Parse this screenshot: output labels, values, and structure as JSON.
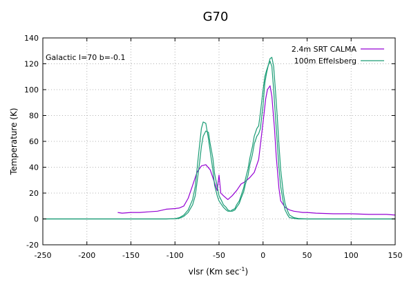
{
  "chart_data": {
    "type": "line",
    "title": "G70",
    "xlabel_main": "vlsr (Km sec",
    "xlabel_sup": "-1",
    "xlabel_tail": ")",
    "ylabel": "Temperature (K)",
    "xlim": [
      -250,
      150
    ],
    "ylim": [
      -20,
      140
    ],
    "xticks": [
      -250,
      -200,
      -150,
      -100,
      -50,
      0,
      50,
      100,
      150
    ],
    "yticks": [
      -20,
      0,
      20,
      40,
      60,
      80,
      100,
      120,
      140
    ],
    "grid": true,
    "legend_position": "top-right",
    "annotation": "Galactic l=70 b=-0.1",
    "series": [
      {
        "name": "2.4m SRT CALMA",
        "color": "#9400d3",
        "x": [
          -165,
          -160,
          -150,
          -140,
          -130,
          -120,
          -110,
          -100,
          -95,
          -90,
          -85,
          -80,
          -75,
          -70,
          -65,
          -60,
          -55,
          -52,
          -50,
          -48,
          -45,
          -40,
          -35,
          -30,
          -25,
          -20,
          -15,
          -10,
          -5,
          0,
          3,
          5,
          8,
          10,
          13,
          15,
          18,
          20,
          25,
          30,
          35,
          40,
          45,
          50,
          60,
          80,
          100,
          120,
          140,
          150
        ],
        "y": [
          5,
          4.5,
          5,
          5,
          5.5,
          6,
          7.5,
          8,
          8.5,
          10,
          16,
          26,
          36,
          41,
          42,
          38,
          28,
          22,
          34,
          20,
          18,
          15,
          18,
          22,
          27,
          29,
          32,
          36,
          46,
          75,
          93,
          100,
          103,
          95,
          70,
          48,
          24,
          14,
          9,
          7,
          6,
          5.5,
          5,
          5,
          4.5,
          4,
          4,
          3.5,
          3.5,
          3
        ]
      },
      {
        "name": "100m Effelsberg",
        "color": "#1a9c75",
        "x": [
          -250,
          -200,
          -150,
          -120,
          -110,
          -100,
          -95,
          -90,
          -85,
          -80,
          -77,
          -75,
          -72,
          -70,
          -68,
          -65,
          -62,
          -60,
          -57,
          -55,
          -52,
          -50,
          -47,
          -45,
          -42,
          -40,
          -37,
          -35,
          -32,
          -30,
          -27,
          -25,
          -22,
          -20,
          -17,
          -15,
          -12,
          -10,
          -7,
          -5,
          -3,
          0,
          2,
          4,
          6,
          8,
          10,
          12,
          14,
          16,
          18,
          20,
          23,
          25,
          28,
          30,
          35,
          40,
          50,
          100,
          150
        ],
        "y": [
          0,
          0,
          0,
          0,
          0,
          0.2,
          1,
          3,
          7,
          15,
          25,
          38,
          58,
          70,
          75,
          74,
          62,
          52,
          38,
          26,
          18,
          14,
          11,
          9,
          7,
          6,
          6,
          7,
          8,
          11,
          14,
          18,
          24,
          31,
          39,
          47,
          56,
          64,
          70,
          72,
          82,
          100,
          110,
          115,
          119,
          122,
          118,
          100,
          80,
          60,
          40,
          25,
          13,
          7,
          3,
          1,
          0.5,
          0,
          0,
          0,
          0
        ]
      },
      {
        "name": "",
        "color": "#1a9c75",
        "x": [
          -250,
          -200,
          -150,
          -120,
          -110,
          -100,
          -95,
          -90,
          -85,
          -80,
          -77,
          -75,
          -72,
          -70,
          -68,
          -65,
          -62,
          -60,
          -57,
          -55,
          -52,
          -50,
          -47,
          -45,
          -42,
          -40,
          -37,
          -35,
          -32,
          -30,
          -27,
          -25,
          -22,
          -20,
          -17,
          -15,
          -12,
          -10,
          -7,
          -5,
          -3,
          0,
          2,
          4,
          6,
          8,
          10,
          12,
          14,
          16,
          18,
          20,
          23,
          25,
          28,
          30,
          35,
          40,
          50,
          100,
          150
        ],
        "y": [
          0,
          0,
          0,
          0,
          0,
          0.1,
          0.5,
          2,
          5,
          11,
          18,
          28,
          44,
          56,
          64,
          68,
          67,
          58,
          47,
          35,
          25,
          18,
          14,
          11,
          9,
          7,
          6,
          6,
          7,
          9,
          12,
          16,
          21,
          27,
          34,
          42,
          50,
          58,
          64,
          66,
          70,
          88,
          105,
          113,
          119,
          124,
          125,
          118,
          100,
          80,
          58,
          38,
          20,
          12,
          6,
          3,
          1,
          0.3,
          0,
          0,
          0
        ]
      }
    ]
  }
}
